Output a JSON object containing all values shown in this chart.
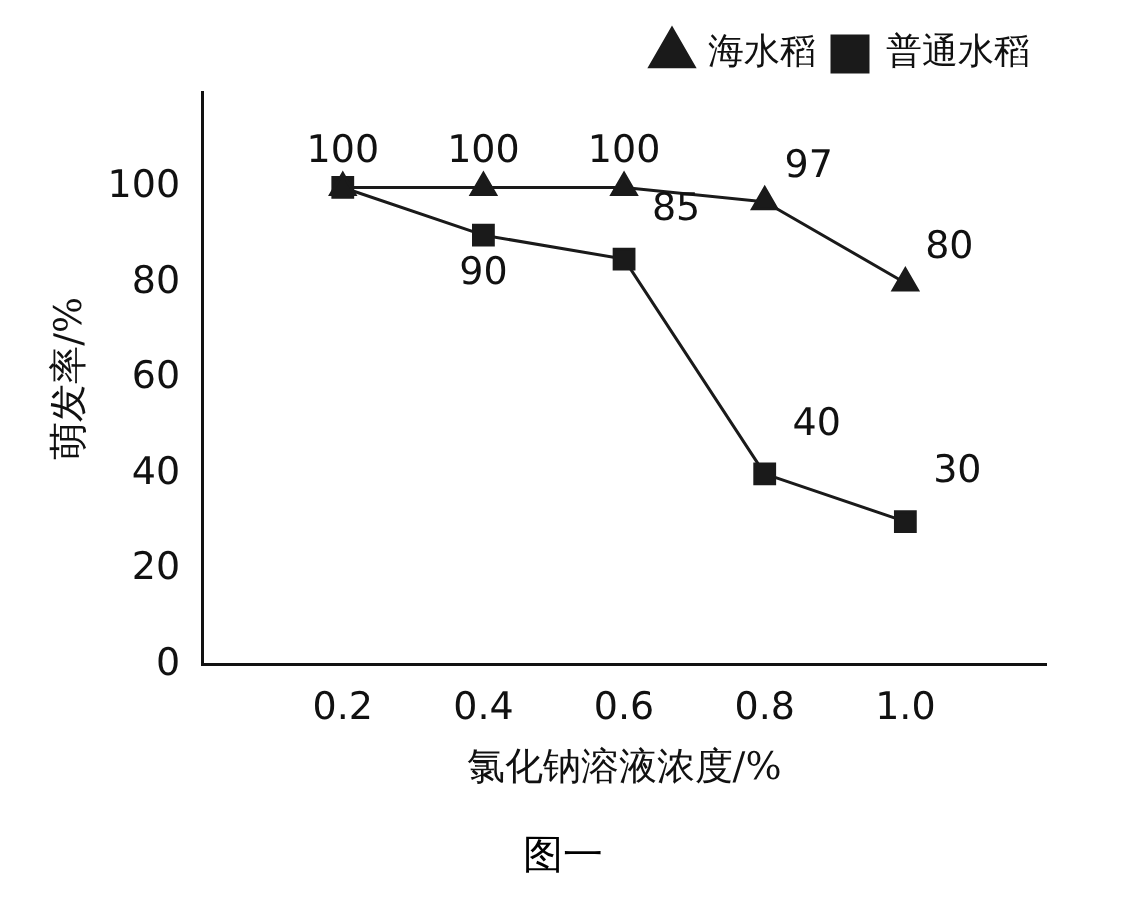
{
  "chart_data": {
    "type": "line",
    "xlabel": "氯化钠溶液浓度/%",
    "ylabel": "萌发率/%",
    "annotations": [
      "图一"
    ],
    "x": [
      0.2,
      0.4,
      0.6,
      0.8,
      1.0
    ],
    "xlim": [
      0,
      1.2
    ],
    "xticks": [
      0.2,
      0.4,
      0.6,
      0.8,
      {
        "value": 1.0,
        "label": "1.0"
      }
    ],
    "ylim": [
      0,
      120
    ],
    "yticks": [
      0,
      20,
      40,
      60,
      80,
      100
    ],
    "grid": false,
    "legend": "top right",
    "line_style": "solid",
    "series": [
      {
        "name": "海水稻",
        "color": "#1a1a1a",
        "marker": "triangle",
        "values": [
          100,
          100,
          100,
          97,
          80
        ],
        "value_labels": [
          "100",
          "100",
          "100",
          "97",
          "80"
        ]
      },
      {
        "name": "普通水稻",
        "color": "#1a1a1a",
        "marker": "square",
        "values": [
          100,
          90,
          85,
          40,
          30
        ],
        "value_labels": [
          null,
          "90",
          "85",
          "40",
          "30"
        ]
      }
    ]
  }
}
